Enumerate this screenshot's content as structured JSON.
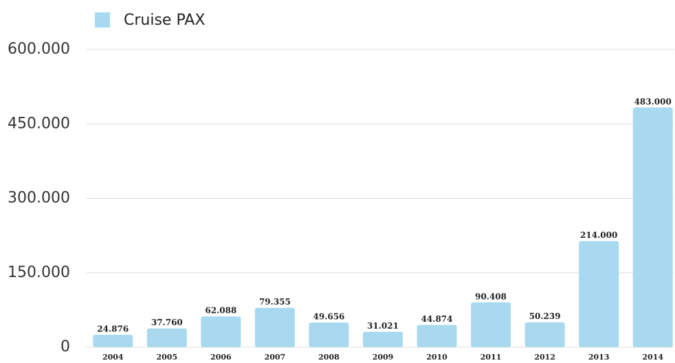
{
  "chart_data": {
    "type": "bar",
    "categories": [
      "2004",
      "2005",
      "2006",
      "2007",
      "2008",
      "2009",
      "2010",
      "2011",
      "2012",
      "2013",
      "2014"
    ],
    "series": [
      {
        "name": "Cruise PAX",
        "color": "#a8d9ef",
        "values": [
          24876,
          37760,
          62088,
          79355,
          49656,
          31021,
          44874,
          90408,
          50239,
          214000,
          483000
        ],
        "value_labels": [
          "24.876",
          "37.760",
          "62.088",
          "79.355",
          "49.656",
          "31.021",
          "44.874",
          "90.408",
          "50.239",
          "214.000",
          "483.000"
        ]
      }
    ],
    "ylim": [
      0,
      600000
    ],
    "yticks": [
      0,
      {
        "value": 150000,
        "label": "150.000"
      },
      {
        "value": 300000,
        "label": "300.000"
      },
      {
        "value": 450000,
        "label": "450.000"
      },
      {
        "value": 600000,
        "label": "600.000"
      }
    ],
    "grid": true,
    "legend": "top-left"
  }
}
